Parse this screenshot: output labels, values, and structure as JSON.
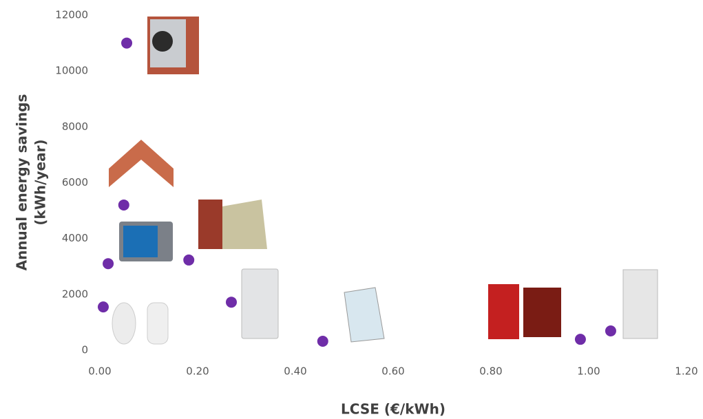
{
  "chart_data": {
    "type": "scatter",
    "x_label": "LCSE (€/kWh)",
    "y_label": [
      "Annual energy savings",
      "(kWh/year)"
    ],
    "x": [
      0.055,
      0.049,
      0.017,
      0.007,
      0.182,
      0.269,
      0.456,
      0.983,
      1.045
    ],
    "values": [
      11000,
      5200,
      3100,
      1550,
      3230,
      1720,
      320,
      390,
      690
    ],
    "color": "#6f2da8",
    "xlim": [
      0,
      1.2
    ],
    "xticks": [
      {
        "value": 0,
        "label": "0.00"
      },
      {
        "value": 0.2,
        "label": "0.20"
      },
      {
        "value": 0.4,
        "label": "0.40"
      },
      {
        "value": 0.6,
        "label": "0.60"
      },
      {
        "value": 0.8,
        "label": "0.80"
      },
      {
        "value": 1.0,
        "label": "1.00"
      },
      {
        "value": 1.2,
        "label": "1.20"
      }
    ],
    "ylim": [
      0,
      12000
    ],
    "yticks": [
      0,
      2000,
      4000,
      6000,
      8000,
      10000,
      12000
    ],
    "grid": false
  }
}
